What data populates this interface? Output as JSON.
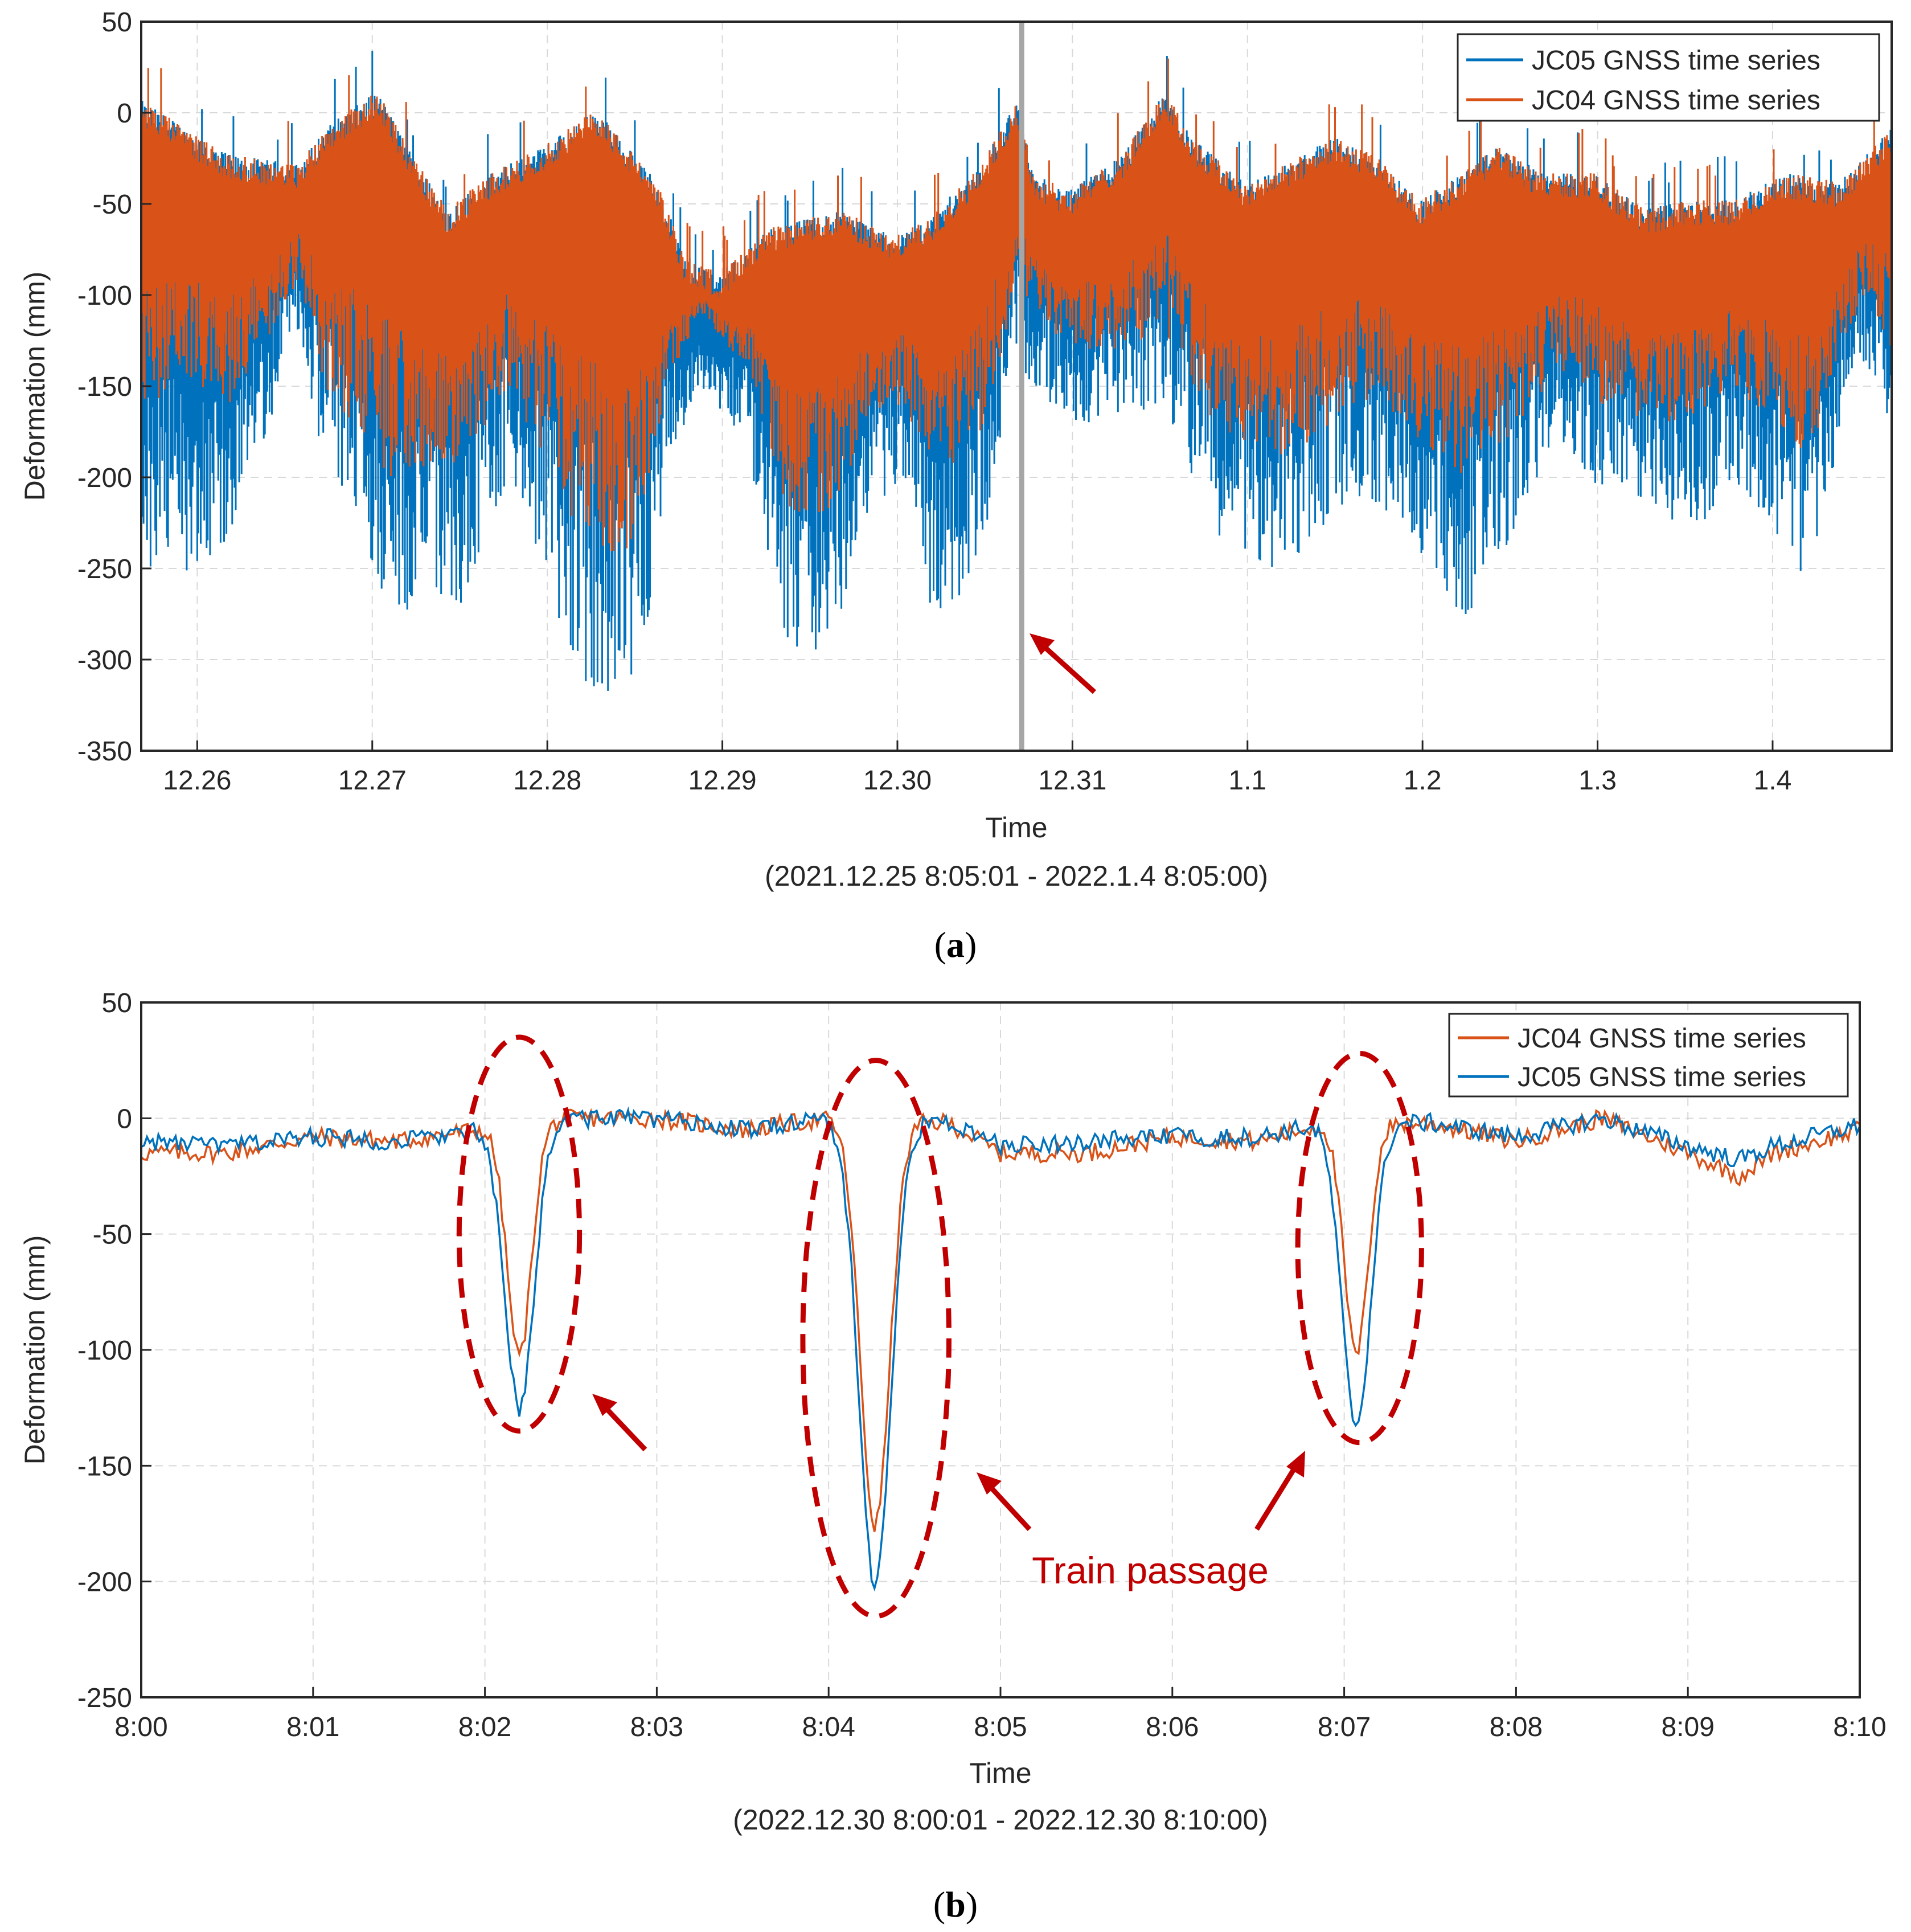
{
  "colors": {
    "blue": "#0072BD",
    "orange": "#D95319",
    "annotation": "#C00000",
    "grid": "#D9D9D9",
    "marker_line": "#A6A6A6"
  },
  "panel_a": {
    "label_open": "(",
    "label_letter": "a",
    "label_close": ")",
    "xlabel": "Time",
    "range_caption": "(2021.12.25 8:05:01 - 2022.1.4 8:05:00)",
    "legend": [
      "JC05 GNSS time series",
      "JC04 GNSS time series"
    ]
  },
  "panel_b": {
    "label_open": "(",
    "label_letter": "b",
    "label_close": ")",
    "xlabel": "Time",
    "range_caption": "(2022.12.30 8:00:01 - 2022.12.30 8:10:00)",
    "legend": [
      "JC04 GNSS time series",
      "JC05 GNSS time series"
    ],
    "annotation": "Train passage"
  },
  "chart_data": [
    {
      "type": "line",
      "title": "",
      "xlabel": "Time",
      "ylabel": "Deformation (mm)",
      "ylim": [
        -350,
        50
      ],
      "yticks": [
        50,
        0,
        -50,
        -100,
        -150,
        -200,
        -250,
        -300,
        -350
      ],
      "xlim": [
        0,
        10
      ],
      "xticks": [
        0.32,
        1.32,
        2.32,
        3.32,
        4.32,
        5.32,
        6.32,
        7.32,
        8.32,
        9.32
      ],
      "xticklabels": [
        "12.26",
        "12.27",
        "12.28",
        "12.29",
        "12.30",
        "12.31",
        "1.1",
        "1.2",
        "1.3",
        "1.4"
      ],
      "grid": true,
      "legend_position": "top-right",
      "marker_x": 5.03,
      "series": [
        {
          "name": "JC05 GNSS time series",
          "color": "#0072BD",
          "upper": [
            [
              0,
              0
            ],
            [
              0.5,
              -30
            ],
            [
              0.9,
              -35
            ],
            [
              1.05,
              -15
            ],
            [
              1.35,
              5
            ],
            [
              1.55,
              -30
            ],
            [
              1.75,
              -60
            ],
            [
              2.0,
              -40
            ],
            [
              2.3,
              -25
            ],
            [
              2.6,
              -5
            ],
            [
              2.95,
              -45
            ],
            [
              3.1,
              -85
            ],
            [
              3.3,
              -95
            ],
            [
              3.6,
              -70
            ],
            [
              4.0,
              -60
            ],
            [
              4.3,
              -75
            ],
            [
              4.5,
              -65
            ],
            [
              4.8,
              -35
            ],
            [
              5.0,
              0
            ],
            [
              5.1,
              -40
            ],
            [
              5.3,
              -50
            ],
            [
              5.6,
              -30
            ],
            [
              5.85,
              5
            ],
            [
              6.0,
              -20
            ],
            [
              6.3,
              -45
            ],
            [
              6.55,
              -35
            ],
            [
              6.8,
              -20
            ],
            [
              7.05,
              -30
            ],
            [
              7.3,
              -55
            ],
            [
              7.55,
              -40
            ],
            [
              7.75,
              -25
            ],
            [
              8.0,
              -40
            ],
            [
              8.3,
              -40
            ],
            [
              8.6,
              -60
            ],
            [
              8.8,
              -55
            ],
            [
              9.1,
              -55
            ],
            [
              9.4,
              -40
            ],
            [
              9.7,
              -45
            ],
            [
              10,
              -15
            ]
          ],
          "lower": [
            [
              0,
              -260
            ],
            [
              0.3,
              -250
            ],
            [
              0.5,
              -240
            ],
            [
              0.7,
              -180
            ],
            [
              0.9,
              -120
            ],
            [
              1.05,
              -200
            ],
            [
              1.2,
              -220
            ],
            [
              1.4,
              -270
            ],
            [
              1.6,
              -280
            ],
            [
              1.85,
              -270
            ],
            [
              2.1,
              -200
            ],
            [
              2.3,
              -260
            ],
            [
              2.55,
              -320
            ],
            [
              2.7,
              -330
            ],
            [
              2.85,
              -310
            ],
            [
              3.0,
              -200
            ],
            [
              3.2,
              -150
            ],
            [
              3.45,
              -180
            ],
            [
              3.7,
              -300
            ],
            [
              3.95,
              -300
            ],
            [
              4.15,
              -220
            ],
            [
              4.35,
              -200
            ],
            [
              4.55,
              -290
            ],
            [
              4.8,
              -240
            ],
            [
              5.0,
              -140
            ],
            [
              5.3,
              -170
            ],
            [
              5.6,
              -170
            ],
            [
              5.85,
              -160
            ],
            [
              6.0,
              -200
            ],
            [
              6.2,
              -240
            ],
            [
              6.45,
              -250
            ],
            [
              6.7,
              -240
            ],
            [
              6.9,
              -210
            ],
            [
              7.1,
              -220
            ],
            [
              7.3,
              -240
            ],
            [
              7.55,
              -280
            ],
            [
              7.8,
              -240
            ],
            [
              8.1,
              -180
            ],
            [
              8.35,
              -210
            ],
            [
              8.65,
              -220
            ],
            [
              8.9,
              -230
            ],
            [
              9.1,
              -200
            ],
            [
              9.3,
              -230
            ],
            [
              9.55,
              -260
            ],
            [
              9.7,
              -180
            ],
            [
              9.85,
              -140
            ],
            [
              10,
              -180
            ]
          ]
        },
        {
          "name": "JC04 GNSS time series",
          "color": "#D95319",
          "upper": [
            [
              0,
              0
            ],
            [
              0.5,
              -30
            ],
            [
              0.9,
              -35
            ],
            [
              1.05,
              -15
            ],
            [
              1.35,
              5
            ],
            [
              1.55,
              -30
            ],
            [
              1.75,
              -60
            ],
            [
              2.0,
              -40
            ],
            [
              2.3,
              -25
            ],
            [
              2.6,
              -5
            ],
            [
              2.95,
              -45
            ],
            [
              3.1,
              -85
            ],
            [
              3.3,
              -95
            ],
            [
              3.6,
              -70
            ],
            [
              4.0,
              -60
            ],
            [
              4.3,
              -75
            ],
            [
              4.5,
              -65
            ],
            [
              4.8,
              -35
            ],
            [
              5.0,
              0
            ],
            [
              5.1,
              -40
            ],
            [
              5.3,
              -50
            ],
            [
              5.6,
              -30
            ],
            [
              5.85,
              5
            ],
            [
              6.0,
              -20
            ],
            [
              6.3,
              -45
            ],
            [
              6.55,
              -35
            ],
            [
              6.8,
              -20
            ],
            [
              7.05,
              -30
            ],
            [
              7.3,
              -55
            ],
            [
              7.55,
              -40
            ],
            [
              7.75,
              -25
            ],
            [
              8.0,
              -40
            ],
            [
              8.3,
              -40
            ],
            [
              8.6,
              -60
            ],
            [
              8.8,
              -55
            ],
            [
              9.1,
              -55
            ],
            [
              9.4,
              -40
            ],
            [
              9.7,
              -45
            ],
            [
              10,
              -15
            ]
          ],
          "lower": [
            [
              0,
              -160
            ],
            [
              0.3,
              -150
            ],
            [
              0.5,
              -160
            ],
            [
              0.7,
              -130
            ],
            [
              0.9,
              -90
            ],
            [
              1.05,
              -150
            ],
            [
              1.2,
              -170
            ],
            [
              1.4,
              -200
            ],
            [
              1.6,
              -200
            ],
            [
              1.85,
              -190
            ],
            [
              2.1,
              -150
            ],
            [
              2.3,
              -190
            ],
            [
              2.55,
              -240
            ],
            [
              2.7,
              -250
            ],
            [
              2.85,
              -230
            ],
            [
              3.0,
              -150
            ],
            [
              3.2,
              -110
            ],
            [
              3.45,
              -140
            ],
            [
              3.7,
              -220
            ],
            [
              3.95,
              -220
            ],
            [
              4.15,
              -170
            ],
            [
              4.35,
              -160
            ],
            [
              4.55,
              -200
            ],
            [
              4.8,
              -180
            ],
            [
              5.0,
              -100
            ],
            [
              5.3,
              -130
            ],
            [
              5.6,
              -130
            ],
            [
              5.85,
              -120
            ],
            [
              6.0,
              -150
            ],
            [
              6.2,
              -180
            ],
            [
              6.45,
              -190
            ],
            [
              6.7,
              -180
            ],
            [
              6.9,
              -160
            ],
            [
              7.1,
              -160
            ],
            [
              7.3,
              -180
            ],
            [
              7.55,
              -200
            ],
            [
              7.8,
              -180
            ],
            [
              8.1,
              -140
            ],
            [
              8.35,
              -160
            ],
            [
              8.65,
              -170
            ],
            [
              8.9,
              -170
            ],
            [
              9.1,
              -150
            ],
            [
              9.3,
              -170
            ],
            [
              9.55,
              -190
            ],
            [
              9.7,
              -130
            ],
            [
              9.85,
              -100
            ],
            [
              10,
              -130
            ]
          ]
        }
      ]
    },
    {
      "type": "line",
      "title": "",
      "xlabel": "Time",
      "ylabel": "Deformation (mm)",
      "ylim": [
        -250,
        50
      ],
      "yticks": [
        50,
        0,
        -50,
        -100,
        -150,
        -200,
        -250
      ],
      "xlim": [
        0,
        10
      ],
      "xticks": [
        0,
        1,
        2,
        3,
        4,
        5,
        6,
        7,
        8,
        9,
        10
      ],
      "xticklabels": [
        "8:00",
        "8:01",
        "8:02",
        "8:03",
        "8:04",
        "8:05",
        "8:06",
        "8:07",
        "8:08",
        "8:09",
        "8:10"
      ],
      "grid": true,
      "legend_position": "top-right",
      "train_passages": [
        {
          "x": 2.2,
          "ellipse_y_range": [
            -135,
            35
          ],
          "ellipse_x_range": [
            1.85,
            2.55
          ]
        },
        {
          "x": 4.27,
          "ellipse_y_range": [
            -215,
            25
          ],
          "ellipse_x_range": [
            3.85,
            4.7
          ]
        },
        {
          "x": 7.07,
          "ellipse_y_range": [
            -140,
            28
          ],
          "ellipse_x_range": [
            6.73,
            7.45
          ]
        }
      ],
      "series": [
        {
          "name": "JC04 GNSS time series",
          "color": "#D95319",
          "baseline": [
            [
              0,
              -15
            ],
            [
              0.5,
              -15
            ],
            [
              1,
              -8
            ],
            [
              1.5,
              -10
            ],
            [
              1.85,
              -6
            ],
            [
              2.5,
              0
            ],
            [
              3,
              0
            ],
            [
              3.5,
              -5
            ],
            [
              4,
              0
            ],
            [
              4.7,
              -2
            ],
            [
              5,
              -15
            ],
            [
              5.5,
              -15
            ],
            [
              6,
              -8
            ],
            [
              6.5,
              -10
            ],
            [
              6.9,
              -2
            ],
            [
              7.5,
              -2
            ],
            [
              8,
              -10
            ],
            [
              8.5,
              0
            ],
            [
              9,
              -15
            ],
            [
              9.3,
              -25
            ],
            [
              9.5,
              -15
            ],
            [
              10,
              -5
            ]
          ],
          "dips": [
            {
              "x": 2.2,
              "depth": -100,
              "width": 0.1
            },
            {
              "x": 4.27,
              "depth": -175,
              "width": 0.12
            },
            {
              "x": 7.07,
              "depth": -100,
              "width": 0.1
            }
          ]
        },
        {
          "name": "JC05 GNSS time series",
          "color": "#0072BD",
          "baseline": [
            [
              0,
              -10
            ],
            [
              0.5,
              -12
            ],
            [
              1,
              -8
            ],
            [
              1.5,
              -10
            ],
            [
              1.85,
              -6
            ],
            [
              2.5,
              0
            ],
            [
              3,
              0
            ],
            [
              3.5,
              -5
            ],
            [
              4,
              0
            ],
            [
              4.7,
              -2
            ],
            [
              5,
              -12
            ],
            [
              5.5,
              -10
            ],
            [
              6,
              -8
            ],
            [
              6.5,
              -8
            ],
            [
              6.9,
              -2
            ],
            [
              7.5,
              -2
            ],
            [
              8,
              -8
            ],
            [
              8.5,
              0
            ],
            [
              9,
              -12
            ],
            [
              9.3,
              -18
            ],
            [
              9.5,
              -12
            ],
            [
              10,
              -3
            ]
          ],
          "dips": [
            {
              "x": 2.2,
              "depth": -122,
              "width": 0.12
            },
            {
              "x": 4.27,
              "depth": -200,
              "width": 0.13
            },
            {
              "x": 7.07,
              "depth": -130,
              "width": 0.12
            }
          ]
        }
      ]
    }
  ]
}
